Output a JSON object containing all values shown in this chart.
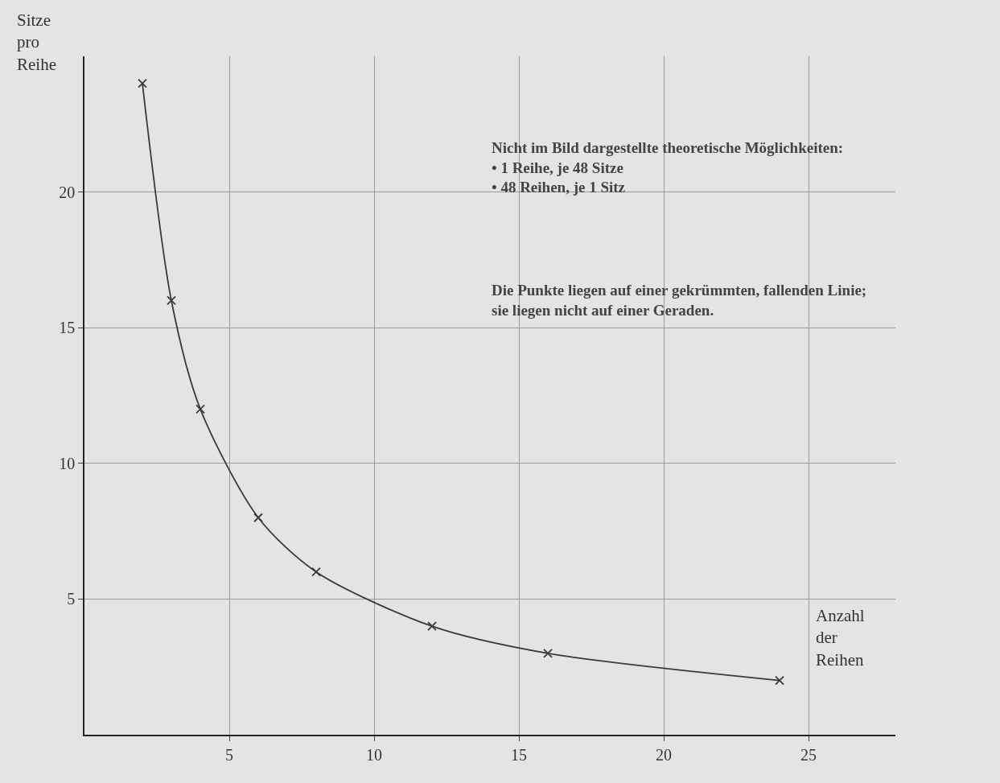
{
  "chart_data": {
    "type": "line",
    "xlabel": "Anzahl\nder\nReihen",
    "ylabel": "Sitze\npro\nReihe",
    "x": [
      2,
      3,
      4,
      6,
      8,
      12,
      16,
      24
    ],
    "series": [
      {
        "color": "#3a3a3a",
        "values": [
          24,
          16,
          12,
          8,
          6,
          4,
          3,
          2
        ]
      }
    ],
    "xlim": [
      0,
      28
    ],
    "ylim": [
      0,
      25
    ],
    "xticks": [
      5,
      10,
      15,
      20,
      25
    ],
    "yticks": [
      5,
      10,
      15,
      20
    ],
    "grid": true,
    "legend": false,
    "marker": "cross",
    "line_style": "solid",
    "annotations": [
      "Nicht im Bild dargestellte theoretische Möglichkeiten:\n• 1 Reihe, je 48 Sitze\n• 48 Reihen, je 1 Sitz",
      "Die Punkte liegen auf einer gekrümmten, fallenden Linie;\nsie liegen nicht auf einer Geraden."
    ]
  }
}
